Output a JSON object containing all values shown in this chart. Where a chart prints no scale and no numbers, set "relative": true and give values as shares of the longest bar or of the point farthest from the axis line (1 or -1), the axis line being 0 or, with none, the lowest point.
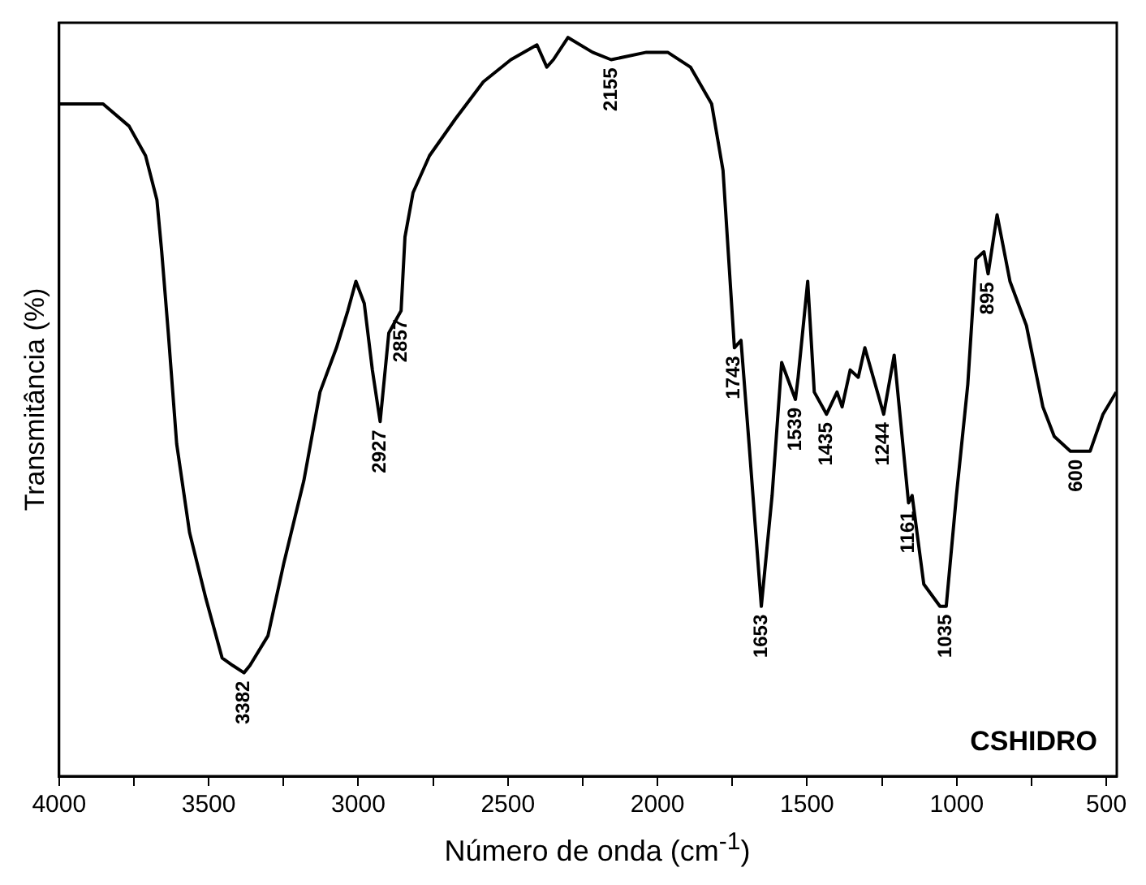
{
  "chart_data": {
    "type": "line",
    "xlabel": "Número de onda (cm$^{-1}$)",
    "ylabel": "Transmitância (%)",
    "relative": true,
    "xlim": [
      4000,
      465
    ],
    "xticks": [
      4000,
      {
        "value": 3750,
        "label": null
      },
      3500,
      {
        "value": 3250,
        "label": null
      },
      3000,
      {
        "value": 2750,
        "label": null
      },
      2500,
      {
        "value": 2250,
        "label": null
      },
      2000,
      {
        "value": 1750,
        "label": null
      },
      1500,
      {
        "value": 1250,
        "label": null
      },
      1000,
      {
        "value": 750,
        "label": null
      },
      500
    ],
    "grid": false,
    "legend": false,
    "marker": "none",
    "line_style": "solid",
    "x": [
      4000,
      3853,
      3766,
      3711,
      3673,
      3657,
      3635,
      3607,
      3564,
      3509,
      3455,
      3420,
      3382,
      3362,
      3302,
      3248,
      3182,
      3128,
      3073,
      3035,
      3008,
      2980,
      2953,
      2927,
      2898,
      2871,
      2857,
      2844,
      2817,
      2762,
      2675,
      2582,
      2490,
      2403,
      2370,
      2348,
      2299,
      2217,
      2155,
      2037,
      1966,
      1890,
      1819,
      1781,
      1743,
      1721,
      1694,
      1653,
      1617,
      1585,
      1539,
      1530,
      1498,
      1476,
      1435,
      1400,
      1383,
      1356,
      1329,
      1307,
      1244,
      1209,
      1161,
      1149,
      1110,
      1056,
      1035,
      1001,
      963,
      936,
      909,
      895,
      865,
      822,
      767,
      712,
      674,
      620,
      600,
      554,
      511,
      467
    ],
    "series": [
      {
        "color": "#000000",
        "values": [
          0.91,
          0.91,
          0.88,
          0.84,
          0.78,
          0.71,
          0.6,
          0.45,
          0.33,
          0.24,
          0.16,
          0.15,
          0.14,
          0.15,
          0.19,
          0.29,
          0.4,
          0.52,
          0.58,
          0.63,
          0.67,
          0.64,
          0.55,
          0.48,
          0.6,
          0.62,
          0.63,
          0.73,
          0.79,
          0.84,
          0.89,
          0.94,
          0.97,
          0.99,
          0.96,
          0.97,
          1.0,
          0.98,
          0.97,
          0.98,
          0.98,
          0.96,
          0.91,
          0.82,
          0.58,
          0.59,
          0.45,
          0.23,
          0.38,
          0.56,
          0.51,
          0.54,
          0.67,
          0.52,
          0.49,
          0.52,
          0.5,
          0.55,
          0.54,
          0.58,
          0.49,
          0.57,
          0.37,
          0.38,
          0.26,
          0.23,
          0.23,
          0.38,
          0.53,
          0.7,
          0.71,
          0.68,
          0.76,
          0.67,
          0.61,
          0.5,
          0.46,
          0.44,
          0.44,
          0.44,
          0.49,
          0.52
        ]
      }
    ],
    "annotations": [
      {
        "text": "3382",
        "x": 3382,
        "y": 0.14
      },
      {
        "text": "2927",
        "x": 2927,
        "y": 0.48
      },
      {
        "text": "2857",
        "x": 2857,
        "y": 0.63
      },
      {
        "text": "2155",
        "x": 2155,
        "y": 0.97
      },
      {
        "text": "1743",
        "x": 1743,
        "y": 0.58
      },
      {
        "text": "1653",
        "x": 1653,
        "y": 0.23
      },
      {
        "text": "1539",
        "x": 1539,
        "y": 0.51
      },
      {
        "text": "1435",
        "x": 1435,
        "y": 0.49
      },
      {
        "text": "1244",
        "x": 1244,
        "y": 0.49
      },
      {
        "text": "1161",
        "x": 1161,
        "y": 0.37
      },
      {
        "text": "1035",
        "x": 1035,
        "y": 0.23
      },
      {
        "text": "895",
        "x": 895,
        "y": 0.68
      },
      {
        "text": "600",
        "x": 600,
        "y": 0.44
      },
      "CSHIDRO"
    ]
  }
}
